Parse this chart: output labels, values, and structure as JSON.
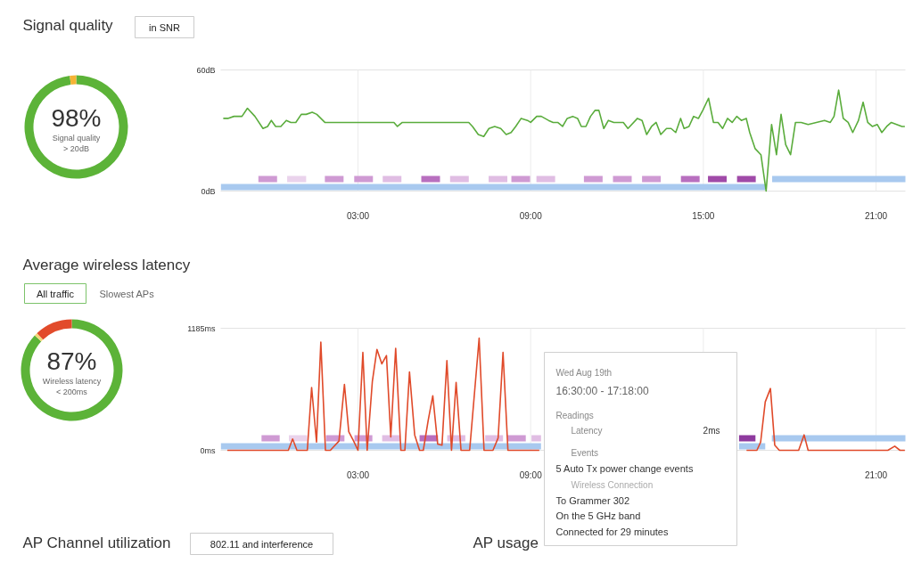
{
  "chart_data": [
    {
      "type": "donut",
      "title": "Signal quality",
      "categories": [
        null,
        null
      ],
      "values": [
        98,
        2
      ],
      "colors": [
        "#5cb338",
        "#f5b335"
      ],
      "annotations": [
        "in SNR",
        "98%",
        "Signal quality\n> 20dB"
      ]
    },
    {
      "type": "line",
      "xlim": [
        -1.77,
        22.02
      ],
      "xticks": [
        {
          "value": 3,
          "label": "03:00"
        },
        {
          "value": 9,
          "label": "09:00"
        },
        {
          "value": 15,
          "label": "15:00"
        },
        {
          "value": 21,
          "label": "21:00"
        }
      ],
      "ylim": [
        0,
        60
      ],
      "yticks": [
        {
          "value": 0,
          "label": "0dB"
        },
        {
          "value": 60,
          "label": "60dB"
        }
      ],
      "grid": "x",
      "x": [
        -1.68,
        -1.52,
        -1.31,
        -1.03,
        -0.84,
        -0.58,
        -0.3,
        -0.14,
        -0.01,
        0.14,
        0.32,
        0.51,
        0.67,
        0.84,
        1.03,
        1.2,
        1.41,
        1.57,
        1.85,
        2.95,
        3.28,
        3.44,
        4.25,
        4.37,
        4.54,
        4.74,
        5.88,
        6.01,
        6.17,
        6.72,
        6.85,
        6.98,
        7.18,
        7.37,
        7.55,
        7.75,
        7.96,
        8.15,
        8.32,
        8.48,
        8.67,
        8.89,
        9.0,
        9.21,
        9.37,
        9.62,
        9.78,
        9.94,
        10.11,
        10.27,
        10.46,
        10.63,
        10.76,
        10.92,
        11.08,
        11.24,
        11.37,
        11.54,
        11.7,
        11.89,
        12.22,
        12.38,
        12.71,
        12.87,
        13.03,
        13.2,
        13.36,
        13.52,
        13.72,
        13.88,
        14.04,
        14.21,
        14.33,
        14.5,
        14.66,
        14.83,
        14.98,
        15.18,
        15.35,
        15.51,
        15.67,
        15.84,
        16.0,
        16.16,
        16.32,
        16.49,
        16.61,
        16.8,
        17.0,
        17.18,
        17.37,
        17.54,
        17.7,
        17.86,
        18.03,
        18.2,
        18.4,
        18.64,
        19.21,
        19.41,
        19.54,
        19.7,
        19.86,
        20.03,
        20.19,
        20.39,
        20.55,
        20.71,
        20.87,
        21.04,
        21.2,
        21.37,
        21.53,
        21.9,
        22.0
      ],
      "bands": [
        {
          "axis": "x",
          "from": -0.46,
          "to": 0.19,
          "color": "#cf9ad3"
        },
        {
          "axis": "x",
          "from": 0.54,
          "to": 1.2,
          "color": "#ead3ec"
        },
        {
          "axis": "x",
          "from": 1.85,
          "to": 2.5,
          "color": "#cf9ad3"
        },
        {
          "axis": "x",
          "from": 2.87,
          "to": 3.52,
          "color": "#cf9ad3"
        },
        {
          "axis": "x",
          "from": 3.86,
          "to": 4.51,
          "color": "#e0bde3"
        },
        {
          "axis": "x",
          "from": 5.2,
          "to": 5.85,
          "color": "#b86fbf"
        },
        {
          "axis": "x",
          "from": 6.2,
          "to": 6.85,
          "color": "#e0bde3"
        },
        {
          "axis": "x",
          "from": 7.54,
          "to": 8.19,
          "color": "#e0bde3"
        },
        {
          "axis": "x",
          "from": 8.33,
          "to": 8.98,
          "color": "#cf9ad3"
        },
        {
          "axis": "x",
          "from": 9.2,
          "to": 9.85,
          "color": "#e0bde3"
        },
        {
          "axis": "x",
          "from": 10.85,
          "to": 11.5,
          "color": "#cf9ad3"
        },
        {
          "axis": "x",
          "from": 11.86,
          "to": 12.51,
          "color": "#cf9ad3"
        },
        {
          "axis": "x",
          "from": 12.87,
          "to": 13.52,
          "color": "#cf9ad3"
        },
        {
          "axis": "x",
          "from": 14.22,
          "to": 14.87,
          "color": "#b86fbf"
        },
        {
          "axis": "x",
          "from": 15.16,
          "to": 15.81,
          "color": "#a04aa8"
        },
        {
          "axis": "x",
          "from": 16.17,
          "to": 16.82,
          "color": "#a04aa8"
        },
        {
          "axis": "x",
          "from": -1.76,
          "to": 17.15,
          "color": "#a8c9ef"
        },
        {
          "axis": "x",
          "from": 17.39,
          "to": 22.02,
          "color": "#a8c9ef"
        }
      ],
      "series": [
        {
          "color": "#5aac3c",
          "values": [
            36,
            36,
            37,
            37,
            41,
            37,
            31,
            32,
            35,
            32,
            32,
            35,
            34,
            34,
            38,
            38,
            39,
            38,
            34,
            34,
            34,
            34,
            34,
            32,
            34,
            34,
            34,
            34,
            34,
            34,
            34,
            32,
            28,
            27,
            31,
            32,
            31,
            28,
            29,
            32,
            36,
            35,
            34,
            37,
            37,
            35,
            34,
            34,
            32,
            36,
            37,
            36,
            32,
            32,
            37,
            40,
            40,
            31,
            35,
            34,
            34,
            31,
            36,
            35,
            28,
            32,
            34,
            28,
            31,
            31,
            29,
            36,
            31,
            32,
            37,
            36,
            40,
            46,
            34,
            34,
            31,
            36,
            34,
            37,
            35,
            36,
            29,
            21,
            18,
            0,
            33,
            18,
            38,
            23,
            18,
            34,
            34,
            33,
            35,
            34,
            37,
            50,
            36,
            34,
            29,
            35,
            44,
            34,
            32,
            33,
            29,
            32,
            34,
            32,
            32
          ]
        }
      ]
    },
    {
      "type": "donut",
      "title": "Average wireless latency",
      "categories": [
        null,
        null,
        null
      ],
      "values": [
        87,
        1,
        12
      ],
      "colors": [
        "#5cb338",
        "#f3d77a",
        "#e24b2b"
      ],
      "annotations": [
        "All traffic",
        "Slowest APs",
        "87%",
        "Wireless latency\n< 200ms"
      ]
    },
    {
      "type": "line",
      "xlim": [
        -1.77,
        22.02
      ],
      "xticks": [
        {
          "value": 3,
          "label": "03:00"
        },
        {
          "value": 9,
          "label": "09:00"
        },
        {
          "value": 15,
          "label": null
        },
        {
          "value": 21,
          "label": "21:00"
        }
      ],
      "ylim": [
        0,
        1185
      ],
      "yticks": [
        {
          "value": 0,
          "label": "0ms"
        },
        {
          "value": 1185,
          "label": "1185ms"
        }
      ],
      "grid": "x",
      "x": [
        -1.54,
        0.58,
        0.73,
        0.88,
        1.24,
        1.39,
        1.56,
        1.71,
        1.87,
        2.04,
        2.34,
        2.53,
        2.68,
        2.85,
        3.0,
        3.17,
        3.32,
        3.5,
        3.66,
        3.83,
        3.99,
        4.14,
        4.31,
        4.49,
        4.63,
        4.79,
        4.97,
        5.14,
        5.27,
        5.44,
        5.6,
        5.77,
        5.92,
        6.09,
        6.25,
        6.41,
        6.58,
        6.88,
        7.21,
        7.38,
        7.69,
        7.87,
        8.04,
        8.21,
        9.3,
        12.0,
        16.5,
        16.86,
        16.99,
        17.15,
        17.33,
        17.48,
        17.64,
        18.31,
        18.5,
        18.64,
        21.41,
        21.65,
        21.83,
        22.0
      ],
      "bands": [
        {
          "axis": "x",
          "from": -0.35,
          "to": 0.28,
          "color": "#cf9ad3"
        },
        {
          "axis": "x",
          "from": 0.6,
          "to": 1.24,
          "color": "#ead3ec"
        },
        {
          "axis": "x",
          "from": 1.89,
          "to": 2.53,
          "color": "#cf9ad3"
        },
        {
          "axis": "x",
          "from": 2.88,
          "to": 3.5,
          "color": "#cf9ad3"
        },
        {
          "axis": "x",
          "from": 3.84,
          "to": 4.47,
          "color": "#e0bde3"
        },
        {
          "axis": "x",
          "from": 5.14,
          "to": 5.78,
          "color": "#b86fbf"
        },
        {
          "axis": "x",
          "from": 6.1,
          "to": 6.73,
          "color": "#e0bde3"
        },
        {
          "axis": "x",
          "from": 7.42,
          "to": 8.04,
          "color": "#e0bde3"
        },
        {
          "axis": "x",
          "from": 8.19,
          "to": 8.83,
          "color": "#cf9ad3"
        },
        {
          "axis": "x",
          "from": 9.03,
          "to": 9.36,
          "color": "#e0bde3"
        },
        {
          "axis": "x",
          "from": 16.24,
          "to": 16.81,
          "color": "#8e3a9e"
        },
        {
          "axis": "x",
          "from": -1.76,
          "to": 9.36,
          "color": "#a8c9ef"
        },
        {
          "axis": "x",
          "from": 16.24,
          "to": 17.15,
          "color": "#a8c9ef"
        },
        {
          "axis": "x",
          "from": 17.38,
          "to": 22.02,
          "color": "#a8c9ef"
        }
      ],
      "series": [
        {
          "color": "#e04a2a",
          "values": [
            0,
            0,
            110,
            0,
            0,
            610,
            80,
            1050,
            0,
            0,
            90,
            640,
            180,
            90,
            0,
            950,
            0,
            670,
            980,
            840,
            920,
            130,
            990,
            0,
            0,
            760,
            150,
            0,
            0,
            290,
            530,
            60,
            50,
            870,
            0,
            660,
            0,
            0,
            1090,
            0,
            0,
            120,
            950,
            0,
            0,
            null,
            0,
            0,
            80,
            470,
            600,
            50,
            0,
            0,
            150,
            0,
            0,
            40,
            0,
            0
          ]
        }
      ],
      "annotations": [
        "Wed Aug 19th",
        "16:30:00 - 17:18:00",
        "Readings",
        "Latency",
        "2ms",
        "Events",
        "5 Auto Tx power change events",
        "Wireless Connection",
        "To Grammer 302",
        "On the 5 GHz band",
        "Connected for 29 minutes"
      ]
    },
    {
      "type": "other",
      "annotations": [
        "AP Channel utilization",
        "802.11 and interference",
        "AP usage"
      ]
    }
  ]
}
